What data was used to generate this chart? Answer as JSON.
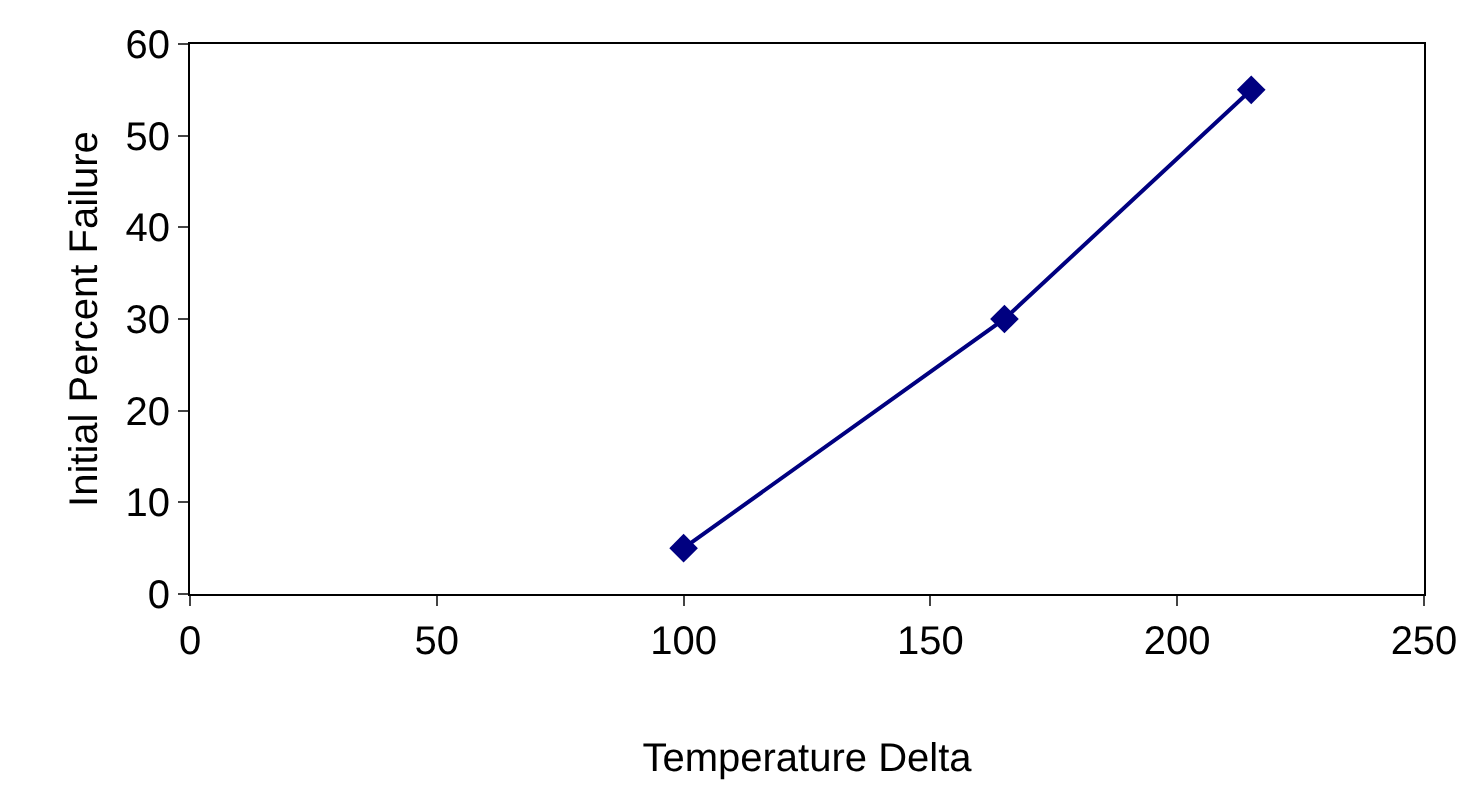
{
  "chart_data": {
    "type": "line",
    "xlabel": "Temperature Delta",
    "ylabel": "Initial Percent Failure",
    "x": [
      100,
      165,
      215
    ],
    "series": [
      {
        "color": "#000080",
        "values": [
          5,
          30,
          55
        ]
      }
    ],
    "xlim": [
      0,
      250
    ],
    "xticks": [
      0,
      50,
      100,
      150,
      200,
      250
    ],
    "ylim": [
      0,
      60
    ],
    "yticks": [
      0,
      10,
      20,
      30,
      40,
      50,
      60
    ],
    "grid": false,
    "legend": false,
    "marker": "diamond",
    "line_style": "solid"
  }
}
